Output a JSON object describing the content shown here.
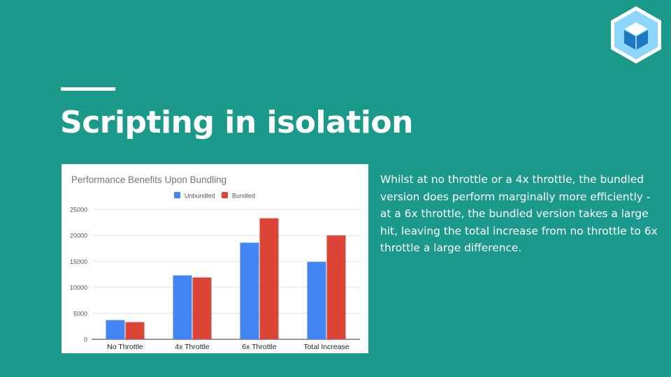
{
  "slide": {
    "title": "Scripting in isolation",
    "body": "Whilst at no throttle or a 4x throttle, the bundled version does perform marginally more efficiently - at a 6x throttle, the bundled version takes a large hit, leaving the total increase from no throttle to 6x throttle a large difference."
  },
  "logo": {
    "icon": "webpack-cube-icon",
    "colors": {
      "outer": "#8ed6fb",
      "inner": "#1c78c0"
    }
  },
  "colors": {
    "background": "#1b998b",
    "text": "#ffffff"
  },
  "chart_data": {
    "type": "bar",
    "title": "Performance Benefits Upon Bundling",
    "xlabel": "",
    "ylabel": "",
    "categories": [
      "No Throttle",
      "4x Throttle",
      "6x Throttle",
      "Total Increase"
    ],
    "series": [
      {
        "name": "Unbundled",
        "color": "#4285f4",
        "values": [
          3700,
          12300,
          18600,
          14900
        ]
      },
      {
        "name": "Bundled",
        "color": "#db4437",
        "values": [
          3300,
          11900,
          23300,
          20000
        ]
      }
    ],
    "ylim": [
      0,
      25000
    ],
    "yticks": [
      0,
      5000,
      10000,
      15000,
      20000,
      25000
    ],
    "grid": true,
    "legend": "top"
  }
}
